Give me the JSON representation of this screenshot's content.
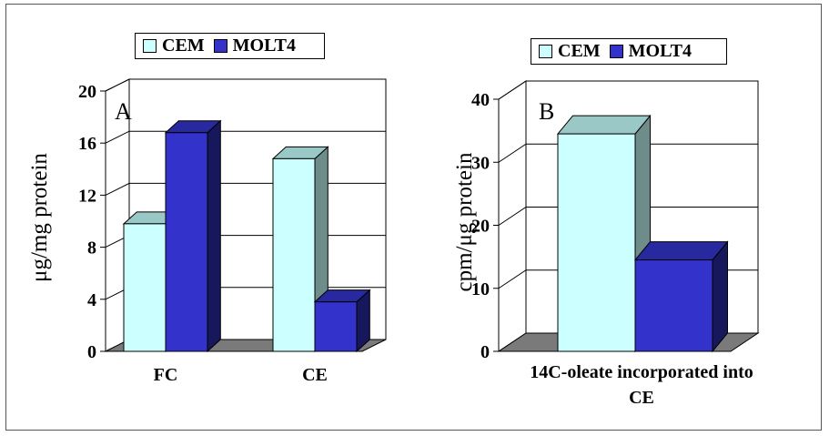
{
  "colors": {
    "cem": "#ccffff",
    "molt4": "#3333cc",
    "floor": "#7a7a7a"
  },
  "chart_data": [
    {
      "type": "bar",
      "panel": "A",
      "categories": [
        "FC",
        "CE"
      ],
      "series": [
        {
          "name": "CEM",
          "values": [
            9.8,
            14.8
          ]
        },
        {
          "name": "MOLT4",
          "values": [
            16.8,
            3.8
          ]
        }
      ],
      "ylabel": "μg/mg protein",
      "xlabel": "",
      "yticks": [
        "0",
        "4",
        "8",
        "12",
        "16",
        "20"
      ],
      "ylim": [
        0,
        20
      ],
      "grid": true,
      "legend": [
        "CEM",
        "MOLT4"
      ],
      "legend_position": "top"
    },
    {
      "type": "bar",
      "panel": "B",
      "categories": [
        ""
      ],
      "series": [
        {
          "name": "CEM",
          "values": [
            34.5
          ]
        },
        {
          "name": "MOLT4",
          "values": [
            14.5
          ]
        }
      ],
      "ylabel": "cpm/μg protein",
      "xlabel": "14C-oleate incorporated into CE",
      "xlabel_lines": [
        "14C-oleate incorporated into",
        "CE"
      ],
      "yticks": [
        "0",
        "10",
        "20",
        "30",
        "40"
      ],
      "ylim": [
        0,
        40
      ],
      "grid": true,
      "legend": [
        "CEM",
        "MOLT4"
      ],
      "legend_position": "top"
    }
  ]
}
